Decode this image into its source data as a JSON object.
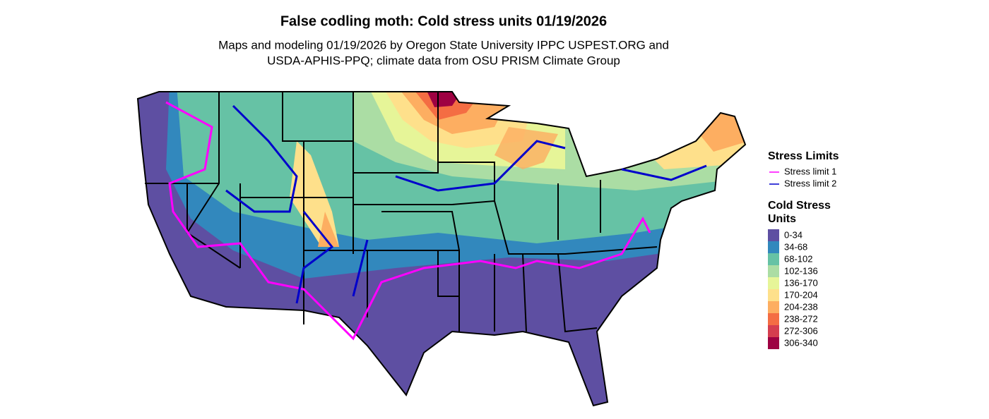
{
  "title": "False codling moth: Cold stress units 01/19/2026",
  "subtitle": [
    "Maps and modeling 01/19/2026 by Oregon State University IPPC USPEST.ORG and",
    "USDA-APHIS-PPQ; climate data from OSU PRISM Climate Group"
  ],
  "legend": {
    "stress_limits": {
      "title": "Stress Limits",
      "items": [
        {
          "label": "Stress limit 1",
          "color": "#ff00ff"
        },
        {
          "label": "Stress limit 2",
          "color": "#0000cc"
        }
      ]
    },
    "cold_stress": {
      "title": [
        "Cold Stress",
        "Units"
      ],
      "items": [
        {
          "label": "0-34",
          "color": "#5e4fa2"
        },
        {
          "label": "34-68",
          "color": "#3288bd"
        },
        {
          "label": "68-102",
          "color": "#66c2a5"
        },
        {
          "label": "102-136",
          "color": "#abdda4"
        },
        {
          "label": "136-170",
          "color": "#e6f598"
        },
        {
          "label": "170-204",
          "color": "#fee08b"
        },
        {
          "label": "204-238",
          "color": "#fdae61"
        },
        {
          "label": "238-272",
          "color": "#f46d43"
        },
        {
          "label": "272-306",
          "color": "#d53e4f"
        },
        {
          "label": "306-340",
          "color": "#9e0142"
        }
      ]
    }
  }
}
